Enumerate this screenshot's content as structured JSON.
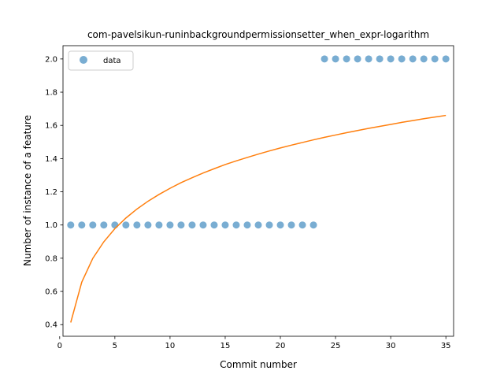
{
  "chart_data": {
    "type": "scatter",
    "title": "com-pavelsikun-runinbackgroundpermissionsetter_when_expr-logarithm",
    "xlabel": "Commit number",
    "ylabel": "Number of instance of a feature",
    "xlim": [
      0.3,
      35.7
    ],
    "ylim": [
      0.33,
      2.08
    ],
    "xticks": [
      0,
      5,
      10,
      15,
      20,
      25,
      30,
      35
    ],
    "yticks": [
      0.4,
      0.6,
      0.8,
      1.0,
      1.2,
      1.4,
      1.6,
      1.8,
      2.0
    ],
    "ytick_labels": [
      "0.4",
      "0.6",
      "0.8",
      "1.0",
      "1.2",
      "1.4",
      "1.6",
      "1.8",
      "2.0"
    ],
    "grid": false,
    "legend": {
      "position": "top-left",
      "entries": [
        "data"
      ]
    },
    "series": [
      {
        "name": "data",
        "kind": "scatter",
        "color": "#1f77b4",
        "alpha": 0.6,
        "x": [
          1,
          2,
          3,
          4,
          5,
          6,
          7,
          8,
          9,
          10,
          11,
          12,
          13,
          14,
          15,
          16,
          17,
          18,
          19,
          20,
          21,
          22,
          23,
          24,
          25,
          26,
          27,
          28,
          29,
          30,
          31,
          32,
          33,
          34,
          35
        ],
        "y": [
          1,
          1,
          1,
          1,
          1,
          1,
          1,
          1,
          1,
          1,
          1,
          1,
          1,
          1,
          1,
          1,
          1,
          1,
          1,
          1,
          1,
          1,
          1,
          2,
          2,
          2,
          2,
          2,
          2,
          2,
          2,
          2,
          2,
          2,
          2
        ]
      },
      {
        "kind": "line",
        "color": "#ff7f0e",
        "x": [
          1,
          2,
          3,
          4,
          5,
          6,
          7,
          8,
          9,
          10,
          11,
          12,
          13,
          14,
          15,
          16,
          17,
          18,
          19,
          20,
          21,
          22,
          23,
          24,
          25,
          26,
          27,
          28,
          29,
          30,
          31,
          32,
          33,
          34,
          35
        ],
        "y": [
          0.413,
          0.656,
          0.799,
          0.899,
          0.978,
          1.042,
          1.096,
          1.143,
          1.184,
          1.221,
          1.255,
          1.285,
          1.313,
          1.339,
          1.364,
          1.386,
          1.407,
          1.427,
          1.446,
          1.464,
          1.481,
          1.497,
          1.513,
          1.528,
          1.542,
          1.556,
          1.569,
          1.582,
          1.594,
          1.606,
          1.618,
          1.629,
          1.64,
          1.65,
          1.66
        ]
      }
    ]
  }
}
